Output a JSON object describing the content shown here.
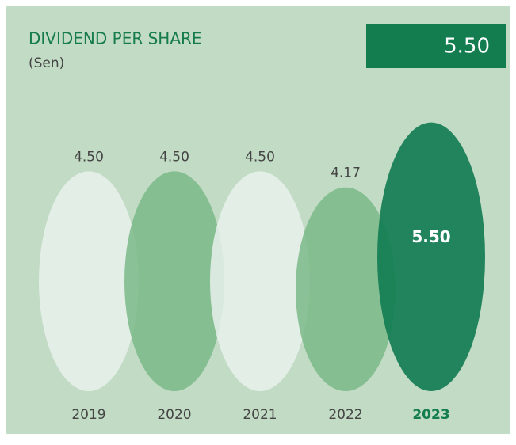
{
  "chart_data": {
    "type": "ellipse",
    "title": "DIVIDEND PER SHARE",
    "subtitle": "(Sen)",
    "headline": "5.50",
    "categories": [
      "2019",
      "2020",
      "2021",
      "2022",
      "2023"
    ],
    "values": [
      4.5,
      4.5,
      4.5,
      4.17,
      5.5
    ],
    "value_labels": [
      "4.50",
      "4.50",
      "4.50",
      "4.17",
      "5.50"
    ],
    "colors": [
      "#e9f1ec",
      "#7ab987",
      "#e9f1ec",
      "#7ab987",
      "#137d54"
    ]
  }
}
